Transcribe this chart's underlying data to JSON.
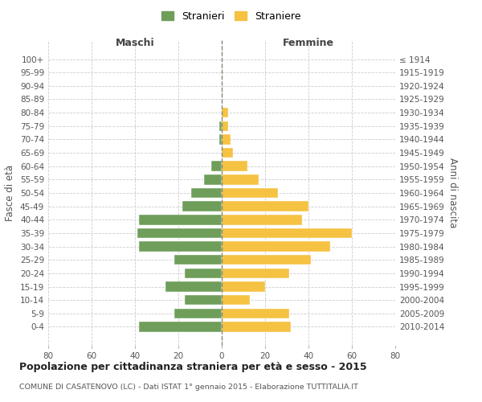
{
  "age_groups": [
    "100+",
    "95-99",
    "90-94",
    "85-89",
    "80-84",
    "75-79",
    "70-74",
    "65-69",
    "60-64",
    "55-59",
    "50-54",
    "45-49",
    "40-44",
    "35-39",
    "30-34",
    "25-29",
    "20-24",
    "15-19",
    "10-14",
    "5-9",
    "0-4"
  ],
  "birth_years": [
    "≤ 1914",
    "1915-1919",
    "1920-1924",
    "1925-1929",
    "1930-1934",
    "1935-1939",
    "1940-1944",
    "1945-1949",
    "1950-1954",
    "1955-1959",
    "1960-1964",
    "1965-1969",
    "1970-1974",
    "1975-1979",
    "1980-1984",
    "1985-1989",
    "1990-1994",
    "1995-1999",
    "2000-2004",
    "2005-2009",
    "2010-2014"
  ],
  "maschi": [
    0,
    0,
    0,
    0,
    0,
    1,
    1,
    0,
    5,
    8,
    14,
    18,
    38,
    39,
    38,
    22,
    17,
    26,
    17,
    22,
    38
  ],
  "femmine": [
    0,
    0,
    0,
    0,
    3,
    3,
    4,
    5,
    12,
    17,
    26,
    40,
    37,
    60,
    50,
    41,
    31,
    20,
    13,
    31,
    32
  ],
  "maschi_color": "#6f9e5a",
  "femmine_color": "#f5c242",
  "grid_color": "#cccccc",
  "title": "Popolazione per cittadinanza straniera per età e sesso - 2015",
  "subtitle": "COMUNE DI CASATENOVO (LC) - Dati ISTAT 1° gennaio 2015 - Elaborazione TUTTITALIA.IT",
  "ylabel_left": "Fasce di età",
  "ylabel_right": "Anni di nascita",
  "xlabel_maschi": "Maschi",
  "xlabel_femmine": "Femmine",
  "legend_maschi": "Stranieri",
  "legend_femmine": "Straniere",
  "xlim": 80
}
